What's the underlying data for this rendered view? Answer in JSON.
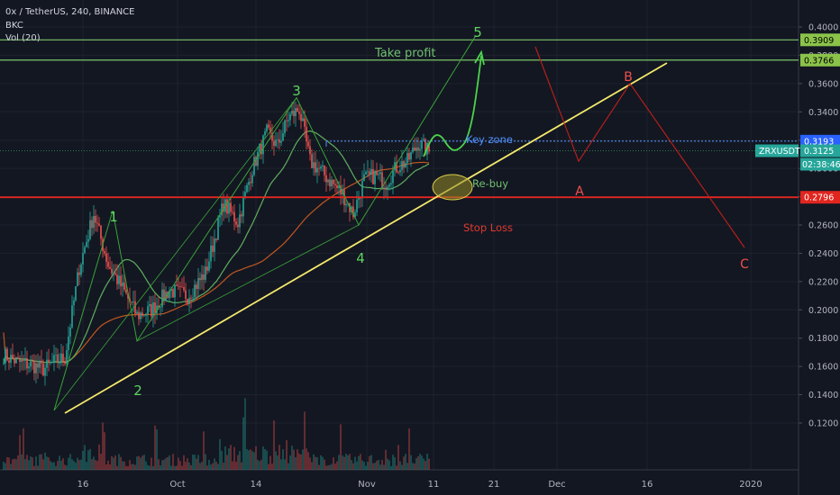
{
  "header": {
    "symbol_line": "0x / TetherUS, 240, BINANCE",
    "indicator1": "BKC",
    "indicator2": "Vol (20)"
  },
  "colors": {
    "background": "#131722",
    "up": "#26a69a",
    "down": "#ef5350",
    "grid": "#1e222d",
    "trendline": "#f4e96b",
    "target_lines": "#7cc46a",
    "stop_loss": "#e0261f",
    "key_zone": "#4f8ff7",
    "projection": "#c0201a",
    "wave": "#3aa33a",
    "ma_fast": "#5fae5f",
    "ma_slow": "#c0571e"
  },
  "chart_data": {
    "type": "candlestick",
    "symbol": "ZRXUSDT",
    "interval": "240",
    "exchange": "BINANCE",
    "x_ticks": [
      "16",
      "Oct",
      "14",
      "Nov",
      "11",
      "21",
      "Dec",
      "16",
      "2020"
    ],
    "y_ticks": [
      "0.4000",
      "0.3800",
      "0.3600",
      "0.3400",
      "0.3200",
      "0.3000",
      "0.2800",
      "0.2600",
      "0.2400",
      "0.2200",
      "0.2000",
      "0.1800",
      "0.1600",
      "0.1400",
      "0.1200"
    ],
    "ylim": [
      0.115,
      0.425
    ],
    "price_levels": [
      {
        "name": "take-profit-upper",
        "value": "0.3909",
        "label": "Take profit"
      },
      {
        "name": "take-profit-lower",
        "value": "0.3766",
        "label": ""
      },
      {
        "name": "key-zone",
        "value": "0.3193",
        "label": "Key zone"
      },
      {
        "name": "current-price",
        "value": "0.3125",
        "label": "ZRXUSDT"
      },
      {
        "name": "stop-loss",
        "value": "0.2796",
        "label": "Stop Loss"
      }
    ],
    "countdown": "02:38:46",
    "annotations": {
      "take_profit": "Take profit",
      "key_zone": "Key zone",
      "rebuy": "Re-buy",
      "stop_loss": "Stop Loss"
    },
    "elliott_waves": [
      {
        "label": "1",
        "price": 0.27
      },
      {
        "label": "2",
        "price": 0.178
      },
      {
        "label": "3",
        "price": 0.35
      },
      {
        "label": "4",
        "price": 0.26
      },
      {
        "label": "5",
        "price": 0.394
      }
    ],
    "corrective_waves": [
      {
        "label": "A",
        "price": 0.3
      },
      {
        "label": "B",
        "price": 0.36
      },
      {
        "label": "C",
        "price": 0.26
      }
    ],
    "price_path_keypoints": [
      {
        "t": 0,
        "close": 0.168
      },
      {
        "t": 8,
        "close": 0.163
      },
      {
        "t": 16,
        "close": 0.161
      },
      {
        "t": 22,
        "close": 0.158
      },
      {
        "t": 28,
        "close": 0.163
      },
      {
        "t": 34,
        "close": 0.166
      },
      {
        "t": 42,
        "close": 0.23
      },
      {
        "t": 50,
        "close": 0.268
      },
      {
        "t": 58,
        "close": 0.232
      },
      {
        "t": 66,
        "close": 0.215
      },
      {
        "t": 74,
        "close": 0.196
      },
      {
        "t": 82,
        "close": 0.2
      },
      {
        "t": 92,
        "close": 0.214
      },
      {
        "t": 102,
        "close": 0.21
      },
      {
        "t": 112,
        "close": 0.226
      },
      {
        "t": 122,
        "close": 0.275
      },
      {
        "t": 130,
        "close": 0.262
      },
      {
        "t": 138,
        "close": 0.3
      },
      {
        "t": 146,
        "close": 0.325
      },
      {
        "t": 152,
        "close": 0.316
      },
      {
        "t": 158,
        "close": 0.336
      },
      {
        "t": 164,
        "close": 0.342
      },
      {
        "t": 170,
        "close": 0.305
      },
      {
        "t": 176,
        "close": 0.298
      },
      {
        "t": 182,
        "close": 0.29
      },
      {
        "t": 188,
        "close": 0.282
      },
      {
        "t": 194,
        "close": 0.268
      },
      {
        "t": 200,
        "close": 0.292
      },
      {
        "t": 206,
        "close": 0.295
      },
      {
        "t": 212,
        "close": 0.29
      },
      {
        "t": 218,
        "close": 0.301
      },
      {
        "t": 224,
        "close": 0.305
      },
      {
        "t": 230,
        "close": 0.318
      },
      {
        "t": 236,
        "close": 0.312
      }
    ]
  }
}
